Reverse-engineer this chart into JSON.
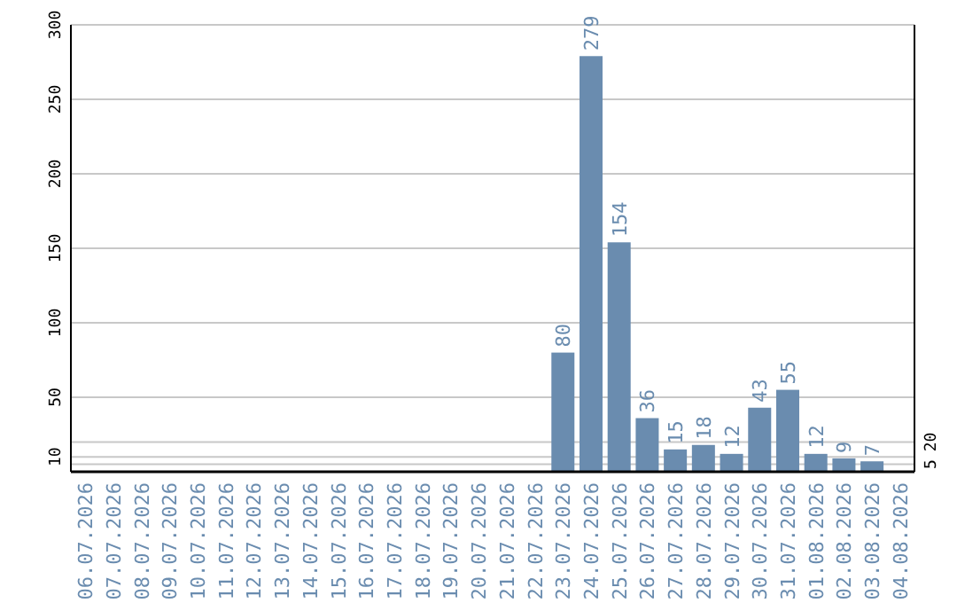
{
  "chart_data": {
    "type": "bar",
    "categories": [
      "06.07.2026",
      "07.07.2026",
      "08.07.2026",
      "09.07.2026",
      "10.07.2026",
      "11.07.2026",
      "12.07.2026",
      "13.07.2026",
      "14.07.2026",
      "15.07.2026",
      "16.07.2026",
      "17.07.2026",
      "18.07.2026",
      "19.07.2026",
      "20.07.2026",
      "21.07.2026",
      "22.07.2026",
      "23.07.2026",
      "24.07.2026",
      "25.07.2026",
      "26.07.2026",
      "27.07.2026",
      "28.07.2026",
      "29.07.2026",
      "30.07.2026",
      "31.07.2026",
      "01.08.2026",
      "02.08.2026",
      "03.08.2026",
      "04.08.2026"
    ],
    "values": [
      null,
      null,
      null,
      null,
      null,
      null,
      null,
      null,
      null,
      null,
      null,
      null,
      null,
      null,
      null,
      null,
      null,
      80,
      279,
      154,
      36,
      15,
      18,
      12,
      43,
      55,
      12,
      9,
      7,
      null
    ],
    "color": "#6a8caf",
    "ylim": [
      0,
      300
    ],
    "yticks": [
      10,
      50,
      100,
      150,
      200,
      250,
      300
    ],
    "y2lim": [
      0,
      300
    ],
    "y2ticks": [
      5,
      20
    ],
    "grid": "y",
    "data_labels": true
  }
}
